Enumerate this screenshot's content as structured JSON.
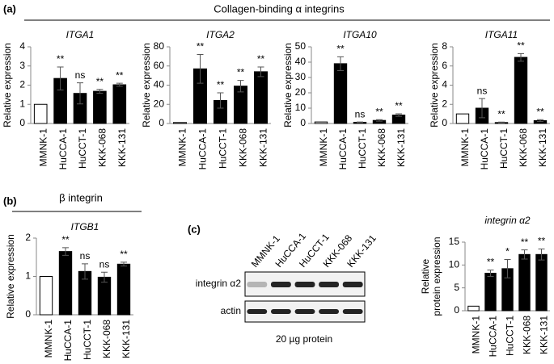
{
  "panel_a": {
    "label": "(a)",
    "title": "Collagen-binding α integrins"
  },
  "panel_b": {
    "label": "(b)",
    "title": "β integrin"
  },
  "panel_c": {
    "label": "(c)",
    "blot": {
      "lanes": [
        "MMNK-1",
        "HuCCA-1",
        "HuCCT-1",
        "KKK-068",
        "KKK-131"
      ],
      "rows": [
        "integrin α2",
        "actin"
      ],
      "caption": "20 µg protein"
    }
  },
  "chart_data": [
    {
      "type": "bar",
      "title": "ITGA1",
      "ylabel": "Relative expression",
      "categories": [
        "MMNK-1",
        "HuCCA-1",
        "HuCCT-1",
        "KKK-068",
        "KKK-131"
      ],
      "values": [
        1,
        2.35,
        1.57,
        1.68,
        2.02
      ],
      "errors": [
        null,
        0.6,
        0.55,
        0.1,
        0.08
      ],
      "annotations": [
        null,
        "**",
        "ns",
        "**",
        "**"
      ],
      "colors": [
        "#ffffff",
        "#000000",
        "#000000",
        "#000000",
        "#000000"
      ],
      "ylim": [
        0,
        4
      ],
      "yticks": [
        0,
        1,
        2,
        3,
        4
      ]
    },
    {
      "type": "bar",
      "title": "ITGA2",
      "ylabel": "Relative expression",
      "categories": [
        "MMNK-1",
        "HuCCA-1",
        "HuCCT-1",
        "KKK-068",
        "KKK-131"
      ],
      "values": [
        1,
        57,
        24,
        39,
        54
      ],
      "errors": [
        null,
        15,
        8,
        6,
        5
      ],
      "annotations": [
        null,
        "**",
        "**",
        "**",
        "**"
      ],
      "colors": [
        "#ffffff",
        "#000000",
        "#000000",
        "#000000",
        "#000000"
      ],
      "ylim": [
        0,
        80
      ],
      "yticks": [
        0,
        20,
        40,
        60,
        80
      ]
    },
    {
      "type": "bar",
      "title": "ITGA10",
      "ylabel": "Relative expression",
      "categories": [
        "MMNK-1",
        "HuCCA-1",
        "HuCCT-1",
        "KKK-068",
        "KKK-131"
      ],
      "values": [
        1,
        39,
        0.8,
        2,
        5.5
      ],
      "errors": [
        null,
        4.5,
        0.2,
        0.5,
        0.8
      ],
      "annotations": [
        null,
        "**",
        "ns",
        "**",
        "**"
      ],
      "colors": [
        "#ffffff",
        "#000000",
        "#000000",
        "#000000",
        "#000000"
      ],
      "ylim": [
        0,
        50
      ],
      "yticks": [
        0,
        10,
        20,
        30,
        40,
        50
      ]
    },
    {
      "type": "bar",
      "title": "ITGA11",
      "ylabel": "Relative expression",
      "categories": [
        "MMNK-1",
        "HuCCA-1",
        "HuCCT-1",
        "KKK-068",
        "KKK-131"
      ],
      "values": [
        1,
        1.6,
        0.1,
        6.9,
        0.3
      ],
      "errors": [
        null,
        1,
        0.05,
        0.4,
        0.1
      ],
      "annotations": [
        null,
        "ns",
        "**",
        "**",
        "**"
      ],
      "colors": [
        "#ffffff",
        "#000000",
        "#000000",
        "#000000",
        "#000000"
      ],
      "ylim": [
        0,
        8
      ],
      "yticks": [
        0,
        2,
        4,
        6,
        8
      ]
    },
    {
      "type": "bar",
      "title": "ITGB1",
      "ylabel": "Relative expression",
      "categories": [
        "MMNK-1",
        "HuCCA-1",
        "HuCCT-1",
        "KKK-068",
        "KKK-131"
      ],
      "values": [
        1,
        1.65,
        1.13,
        0.98,
        1.32
      ],
      "errors": [
        null,
        0.1,
        0.2,
        0.13,
        0.05
      ],
      "annotations": [
        null,
        "**",
        "ns",
        "ns",
        "**"
      ],
      "colors": [
        "#ffffff",
        "#000000",
        "#000000",
        "#000000",
        "#000000"
      ],
      "ylim": [
        0,
        2
      ],
      "yticks": [
        0,
        1,
        2
      ]
    },
    {
      "type": "bar",
      "title": "integrin α2",
      "ylabel": [
        "Relative",
        "protein expression"
      ],
      "categories": [
        "MMNK-1",
        "HuCCA-1",
        "HuCCT-1",
        "KKK-068",
        "KKK-131"
      ],
      "values": [
        1,
        8.2,
        9.2,
        12.3,
        12.3
      ],
      "errors": [
        null,
        0.7,
        2,
        1,
        1.2
      ],
      "annotations": [
        null,
        "**",
        "*",
        "**",
        "**"
      ],
      "colors": [
        "#ffffff",
        "#000000",
        "#000000",
        "#000000",
        "#000000"
      ],
      "ylim": [
        0,
        15
      ],
      "yticks": [
        0,
        5,
        10,
        15
      ]
    }
  ]
}
